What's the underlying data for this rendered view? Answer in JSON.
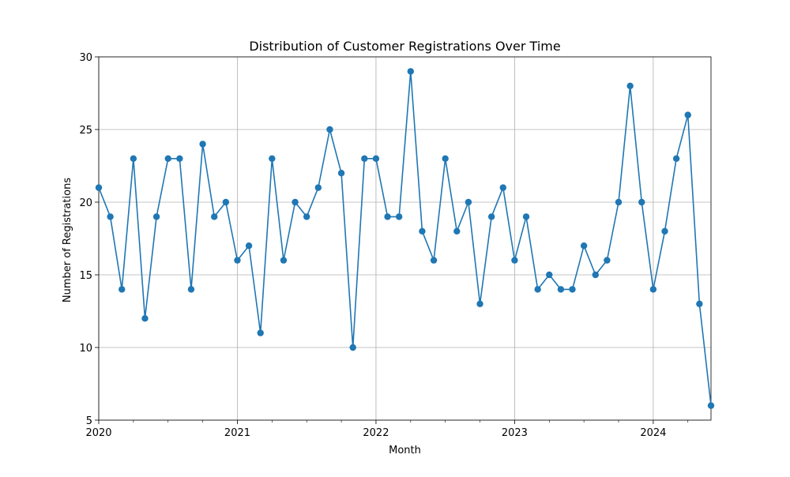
{
  "chart_data": {
    "type": "line",
    "title": "Distribution of Customer Registrations Over Time",
    "xlabel": "Month",
    "ylabel": "Number of Registrations",
    "x": [
      "2020-01",
      "2020-02",
      "2020-03",
      "2020-04",
      "2020-05",
      "2020-06",
      "2020-07",
      "2020-08",
      "2020-09",
      "2020-10",
      "2020-11",
      "2020-12",
      "2021-01",
      "2021-02",
      "2021-03",
      "2021-04",
      "2021-05",
      "2021-06",
      "2021-07",
      "2021-08",
      "2021-09",
      "2021-10",
      "2021-11",
      "2021-12",
      "2022-01",
      "2022-02",
      "2022-03",
      "2022-04",
      "2022-05",
      "2022-06",
      "2022-07",
      "2022-08",
      "2022-09",
      "2022-10",
      "2022-11",
      "2022-12",
      "2023-01",
      "2023-02",
      "2023-03",
      "2023-04",
      "2023-05",
      "2023-06",
      "2023-07",
      "2023-08",
      "2023-09",
      "2023-10",
      "2023-11",
      "2023-12",
      "2024-01",
      "2024-02",
      "2024-03",
      "2024-04",
      "2024-05",
      "2024-06"
    ],
    "series": [
      {
        "values": [
          21,
          19,
          14,
          23,
          12,
          19,
          23,
          23,
          14,
          24,
          19,
          20,
          16,
          17,
          11,
          23,
          16,
          20,
          19,
          21,
          25,
          22,
          10,
          23,
          23,
          19,
          19,
          29,
          18,
          16,
          23,
          18,
          20,
          13,
          19,
          21,
          16,
          19,
          14,
          15,
          14,
          14,
          17,
          15,
          16,
          20,
          28,
          20,
          14,
          18,
          23,
          26,
          13,
          6
        ],
        "color": "#1f77b4"
      }
    ],
    "xlim": [
      "2020-01",
      "2024-06"
    ],
    "ylim": [
      5,
      30
    ],
    "x_ticks": [
      "2020",
      "2021",
      "2022",
      "2023",
      "2024"
    ],
    "y_ticks": [
      5,
      10,
      15,
      20,
      25,
      30
    ],
    "grid": true,
    "marker": "circle"
  }
}
